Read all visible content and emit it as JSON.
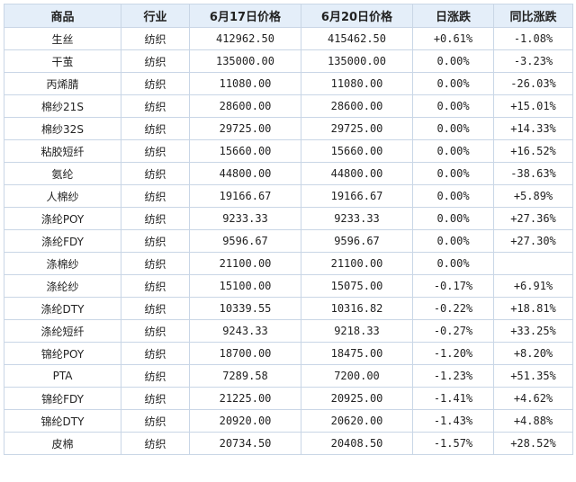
{
  "headers": [
    "商品",
    "行业",
    "6月17日价格",
    "6月20日价格",
    "日涨跌",
    "同比涨跌"
  ],
  "rows": [
    {
      "name": "生丝",
      "industry": "纺织",
      "p1": "412962.50",
      "p2": "415462.50",
      "daily": "+0.61%",
      "yoy": "-1.08%",
      "highlight": false
    },
    {
      "name": "干茧",
      "industry": "纺织",
      "p1": "135000.00",
      "p2": "135000.00",
      "daily": "0.00%",
      "yoy": "-3.23%",
      "highlight": true
    },
    {
      "name": "丙烯腈",
      "industry": "纺织",
      "p1": "11080.00",
      "p2": "11080.00",
      "daily": "0.00%",
      "yoy": "-26.03%",
      "highlight": true
    },
    {
      "name": "棉纱21S",
      "industry": "纺织",
      "p1": "28600.00",
      "p2": "28600.00",
      "daily": "0.00%",
      "yoy": "+15.01%",
      "highlight": true
    },
    {
      "name": "棉纱32S",
      "industry": "纺织",
      "p1": "29725.00",
      "p2": "29725.00",
      "daily": "0.00%",
      "yoy": "+14.33%",
      "highlight": false
    },
    {
      "name": "粘胶短纤",
      "industry": "纺织",
      "p1": "15660.00",
      "p2": "15660.00",
      "daily": "0.00%",
      "yoy": "+16.52%",
      "highlight": true
    },
    {
      "name": "氨纶",
      "industry": "纺织",
      "p1": "44800.00",
      "p2": "44800.00",
      "daily": "0.00%",
      "yoy": "-38.63%",
      "highlight": true
    },
    {
      "name": "人棉纱",
      "industry": "纺织",
      "p1": "19166.67",
      "p2": "19166.67",
      "daily": "0.00%",
      "yoy": "+5.89%",
      "highlight": true
    },
    {
      "name": "涤纶POY",
      "industry": "纺织",
      "p1": "9233.33",
      "p2": "9233.33",
      "daily": "0.00%",
      "yoy": "+27.36%",
      "highlight": true
    },
    {
      "name": "涤纶FDY",
      "industry": "纺织",
      "p1": "9596.67",
      "p2": "9596.67",
      "daily": "0.00%",
      "yoy": "+27.30%",
      "highlight": true
    },
    {
      "name": "涤棉纱",
      "industry": "纺织",
      "p1": "21100.00",
      "p2": "21100.00",
      "daily": "0.00%",
      "yoy": "",
      "highlight": false
    },
    {
      "name": "涤纶纱",
      "industry": "纺织",
      "p1": "15100.00",
      "p2": "15075.00",
      "daily": "-0.17%",
      "yoy": "+6.91%",
      "highlight": true
    },
    {
      "name": "涤纶DTY",
      "industry": "纺织",
      "p1": "10339.55",
      "p2": "10316.82",
      "daily": "-0.22%",
      "yoy": "+18.81%",
      "highlight": true
    },
    {
      "name": "涤纶短纤",
      "industry": "纺织",
      "p1": "9243.33",
      "p2": "9218.33",
      "daily": "-0.27%",
      "yoy": "+33.25%",
      "highlight": true
    },
    {
      "name": "锦纶POY",
      "industry": "纺织",
      "p1": "18700.00",
      "p2": "18475.00",
      "daily": "-1.20%",
      "yoy": "+8.20%",
      "highlight": true
    },
    {
      "name": "PTA",
      "industry": "纺织",
      "p1": "7289.58",
      "p2": "7200.00",
      "daily": "-1.23%",
      "yoy": "+51.35%",
      "highlight": true
    },
    {
      "name": "锦纶FDY",
      "industry": "纺织",
      "p1": "21225.00",
      "p2": "20925.00",
      "daily": "-1.41%",
      "yoy": "+4.62%",
      "highlight": false
    },
    {
      "name": "锦纶DTY",
      "industry": "纺织",
      "p1": "20920.00",
      "p2": "20620.00",
      "daily": "-1.43%",
      "yoy": "+4.88%",
      "highlight": true
    },
    {
      "name": "皮棉",
      "industry": "纺织",
      "p1": "20734.50",
      "p2": "20408.50",
      "daily": "-1.57%",
      "yoy": "+28.52%",
      "highlight": false
    }
  ],
  "colors": {
    "header_bg": "#e4eef9",
    "border": "#c9d6e6",
    "highlight_text": "#e87817",
    "positive": "#e8000b",
    "negative": "#0a8a1f"
  }
}
